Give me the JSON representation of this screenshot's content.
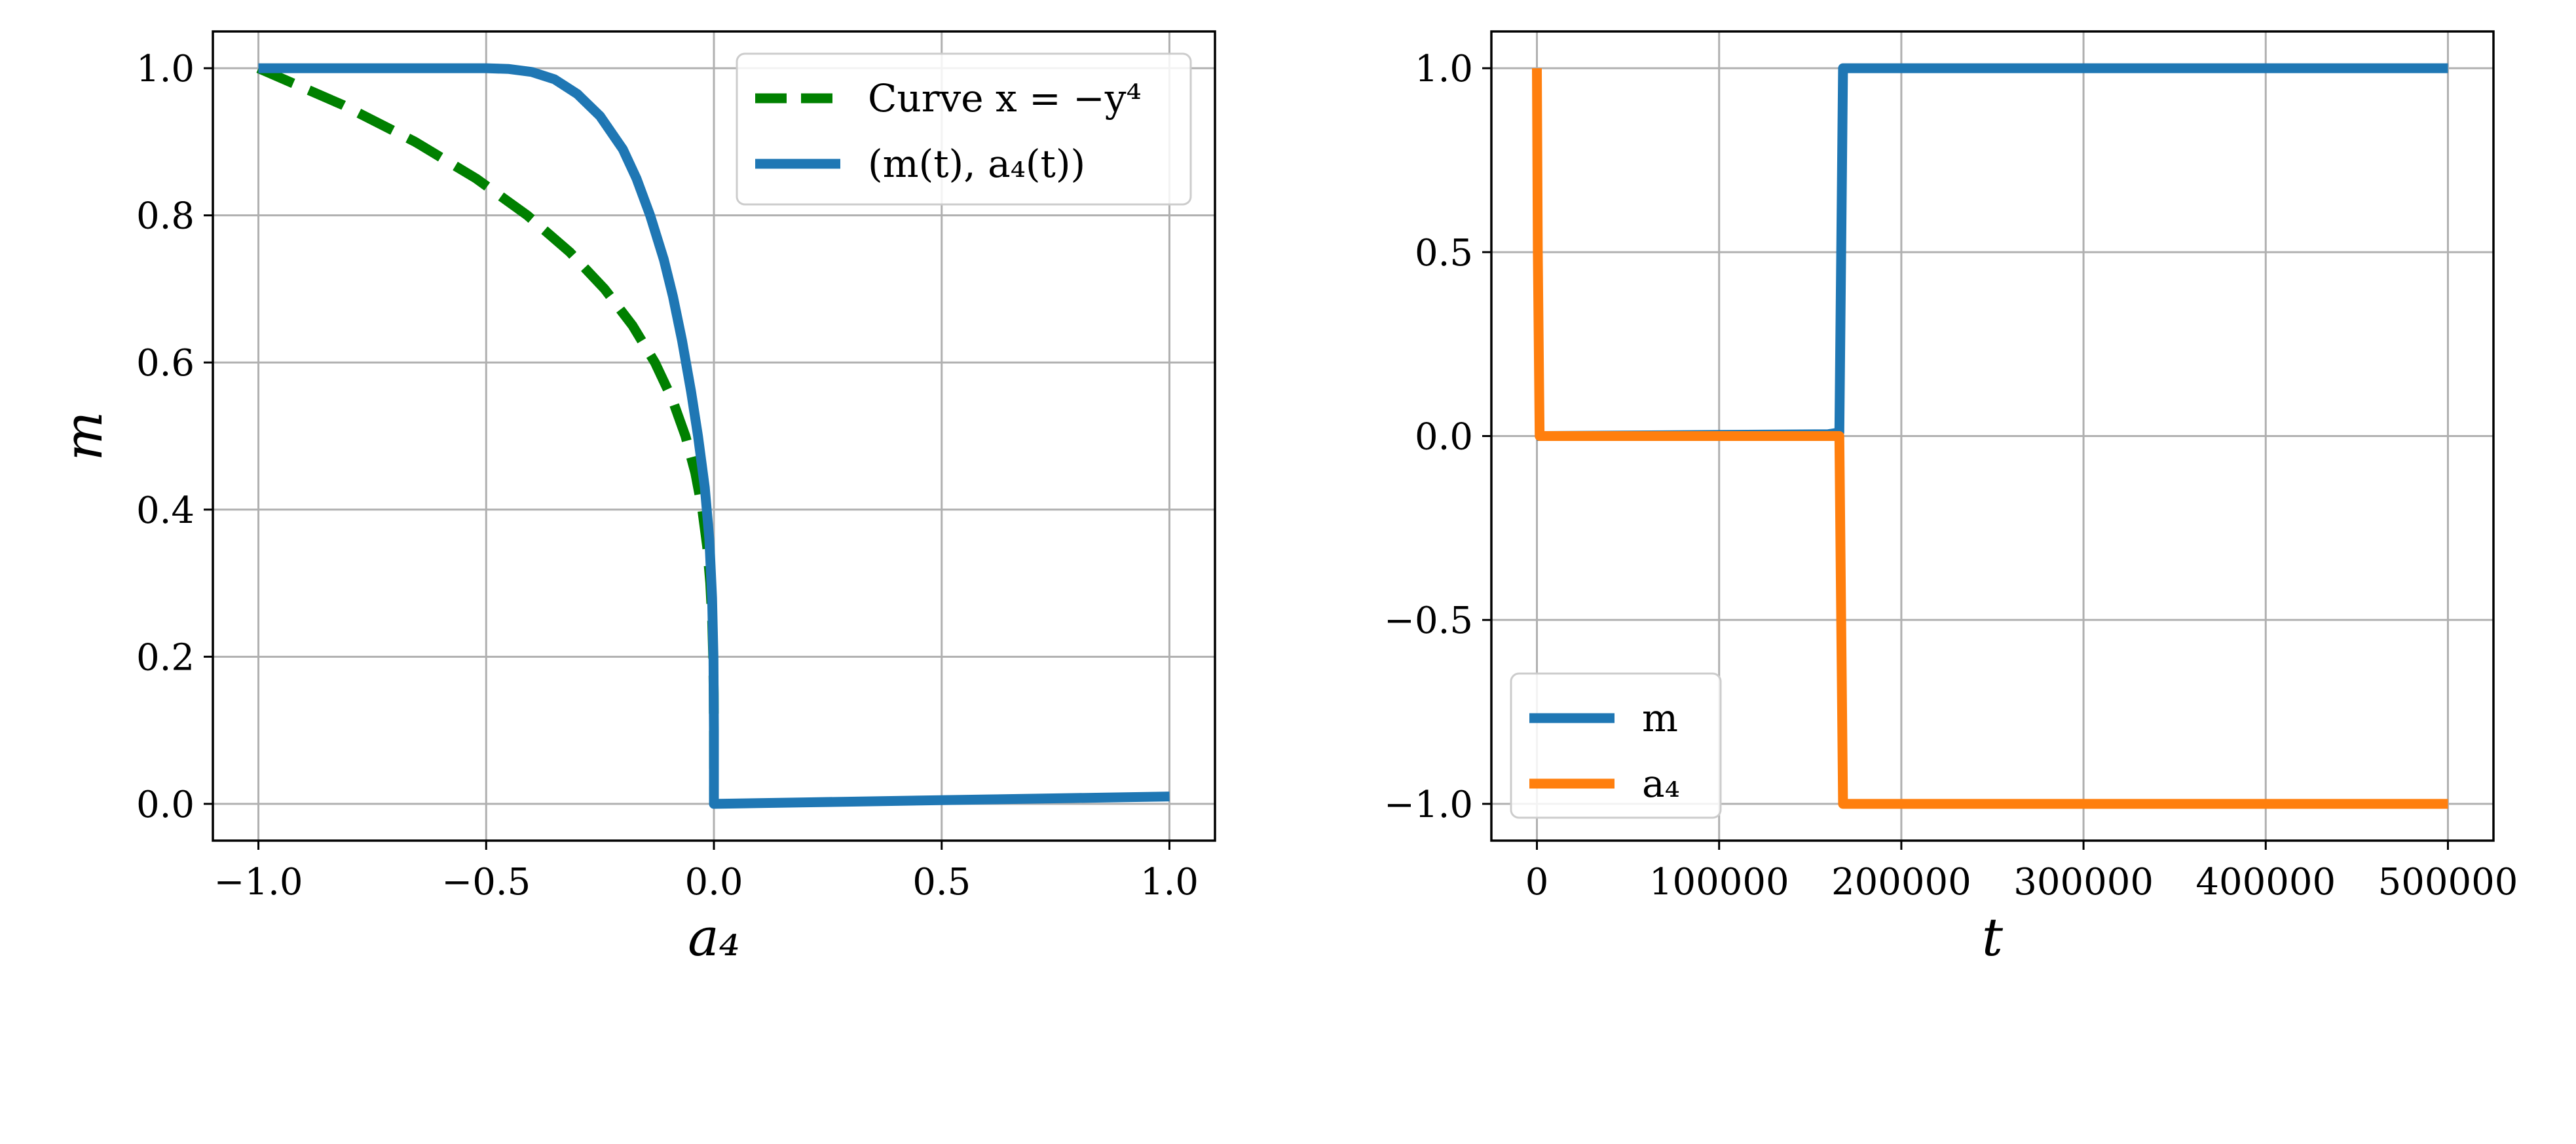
{
  "chart_data": [
    {
      "type": "line",
      "xlabel": "a₄",
      "ylabel": "m",
      "xlim": [
        -1.1,
        1.1
      ],
      "ylim": [
        -0.05,
        1.05
      ],
      "xticks": [
        -1.0,
        -0.5,
        0.0,
        0.5,
        1.0
      ],
      "yticks": [
        0.0,
        0.2,
        0.4,
        0.6,
        0.8,
        1.0
      ],
      "xtick_labels": [
        "−1.0",
        "−0.5",
        "0.0",
        "0.5",
        "1.0"
      ],
      "ytick_labels": [
        "0.0",
        "0.2",
        "0.4",
        "0.6",
        "0.8",
        "1.0"
      ],
      "grid": true,
      "legend_position": "top-right",
      "series": [
        {
          "name": "Curve x = −y⁴",
          "color": "#008000",
          "style": "dashed",
          "formula": "x = -y^4",
          "x": [
            -1.0,
            -0.8145,
            -0.6561,
            -0.522,
            -0.4096,
            -0.3164,
            -0.2401,
            -0.1785,
            -0.1296,
            -0.0915,
            -0.0625,
            -0.041,
            -0.0256,
            -0.015,
            -0.0081,
            -0.0039,
            -0.0016,
            -0.0005,
            -0.0001,
            0.0
          ],
          "y": [
            1.0,
            0.95,
            0.9,
            0.85,
            0.8,
            0.75,
            0.7,
            0.65,
            0.6,
            0.55,
            0.5,
            0.45,
            0.4,
            0.35,
            0.3,
            0.25,
            0.2,
            0.15,
            0.1,
            0.0
          ]
        },
        {
          "name": "(m(t), a₄(t))",
          "color": "#1f77b4",
          "style": "solid",
          "x": [
            -1.0,
            -0.9,
            -0.8,
            -0.7,
            -0.6,
            -0.5,
            -0.45,
            -0.4,
            -0.35,
            -0.3,
            -0.25,
            -0.2,
            -0.17,
            -0.14,
            -0.11,
            -0.09,
            -0.07,
            -0.05,
            -0.035,
            -0.02,
            -0.01,
            -0.004,
            -0.001,
            0.0,
            0.0,
            0.2,
            0.4,
            0.6,
            0.8,
            1.0
          ],
          "y": [
            1.0,
            1.0,
            1.0,
            1.0,
            1.0,
            1.0,
            0.999,
            0.995,
            0.985,
            0.965,
            0.935,
            0.89,
            0.85,
            0.8,
            0.74,
            0.69,
            0.63,
            0.56,
            0.5,
            0.43,
            0.36,
            0.28,
            0.2,
            0.1,
            0.0,
            0.002,
            0.004,
            0.006,
            0.008,
            0.01
          ]
        }
      ]
    },
    {
      "type": "line",
      "xlabel": "t",
      "ylabel": "",
      "xlim": [
        -25000,
        525000
      ],
      "ylim": [
        -1.1,
        1.1
      ],
      "xticks": [
        0,
        100000,
        200000,
        300000,
        400000,
        500000
      ],
      "yticks": [
        -1.0,
        -0.5,
        0.0,
        0.5,
        1.0
      ],
      "xtick_labels": [
        "0",
        "100000",
        "200000",
        "300000",
        "400000",
        "500000"
      ],
      "ytick_labels": [
        "−1.0",
        "−0.5",
        "0.0",
        "0.5",
        "1.0"
      ],
      "grid": true,
      "legend_position": "bottom-left",
      "series": [
        {
          "name": "m",
          "color": "#1f77b4",
          "style": "solid",
          "x": [
            0,
            2000,
            100000,
            160000,
            166000,
            167000,
            168000,
            500000
          ],
          "y": [
            0.0,
            0.0,
            0.003,
            0.005,
            0.01,
            0.5,
            1.0,
            1.0
          ]
        },
        {
          "name": "a₄",
          "color": "#ff7f0e",
          "style": "solid",
          "x": [
            0,
            500,
            1500,
            50000,
            166000,
            167000,
            168000,
            500000
          ],
          "y": [
            1.0,
            0.5,
            0.0,
            0.0,
            0.0,
            -0.5,
            -1.0,
            -1.0
          ]
        }
      ]
    }
  ]
}
